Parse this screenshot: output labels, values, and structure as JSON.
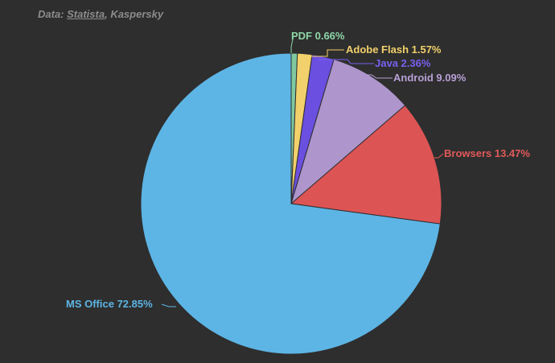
{
  "source": {
    "prefix": "Data: ",
    "link_text": "Statista",
    "suffix": ", Kaspersky"
  },
  "chart_data": {
    "type": "pie",
    "title": "",
    "start_angle_deg": 0,
    "direction": "clockwise",
    "slices": [
      {
        "name": "PDF",
        "label": "PDF 0.66%",
        "value": 0.66,
        "color": "#7fc8a0",
        "label_color": "#8fd6a8"
      },
      {
        "name": "Adobe Flash",
        "label": "Adobe Flash 1.57%",
        "value": 1.57,
        "color": "#f2d06b",
        "label_color": "#f2d06b"
      },
      {
        "name": "Java",
        "label": "Java 2.36%",
        "value": 2.36,
        "color": "#6b4fe0",
        "label_color": "#7b5ff0"
      },
      {
        "name": "Android",
        "label": "Android 9.09%",
        "value": 9.09,
        "color": "#ae95cc",
        "label_color": "#b8a0d6"
      },
      {
        "name": "Browsers",
        "label": "Browsers 13.47%",
        "value": 13.47,
        "color": "#dd5455",
        "label_color": "#e25a5a"
      },
      {
        "name": "MS Office",
        "label": "MS Office 72.85%",
        "value": 72.85,
        "color": "#5db5e5",
        "label_color": "#5db5e5"
      }
    ]
  }
}
